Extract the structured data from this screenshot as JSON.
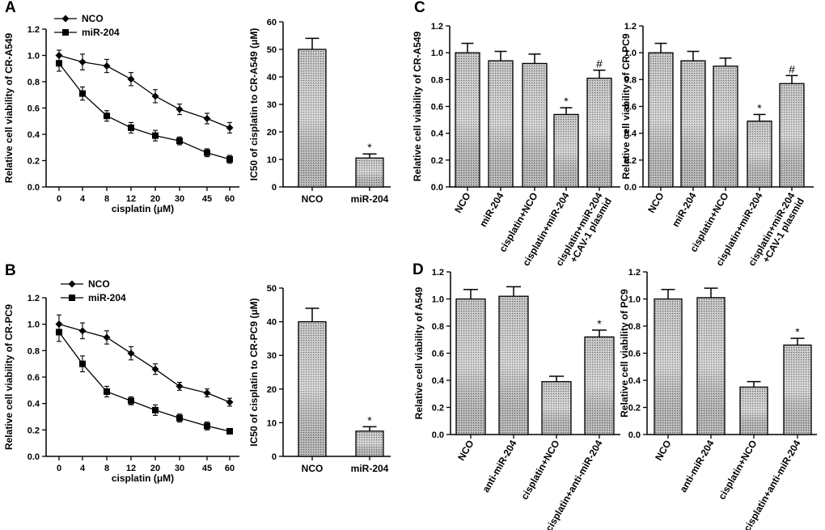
{
  "chart_data": [
    {
      "panel": "A",
      "type": "line",
      "x": [
        "0",
        "4",
        "8",
        "12",
        "20",
        "30",
        "45",
        "60"
      ],
      "series": [
        {
          "name": "NCO",
          "marker": "diamond",
          "values": [
            1.0,
            0.95,
            0.92,
            0.82,
            0.69,
            0.59,
            0.52,
            0.45
          ],
          "errors": [
            0.04,
            0.06,
            0.05,
            0.05,
            0.05,
            0.04,
            0.04,
            0.04
          ]
        },
        {
          "name": "miR-204",
          "marker": "square",
          "values": [
            0.94,
            0.71,
            0.54,
            0.45,
            0.39,
            0.35,
            0.26,
            0.21
          ],
          "errors": [
            0.06,
            0.05,
            0.04,
            0.04,
            0.04,
            0.03,
            0.03,
            0.03
          ]
        }
      ],
      "ylim": [
        0,
        1.2
      ],
      "yticks": [
        "0.0",
        "0.2",
        "0.4",
        "0.6",
        "0.8",
        "1.0",
        "1.2"
      ],
      "xlabel": "cisplatin (μM)",
      "ylabel": "Relative cell viability of CR-A549"
    },
    {
      "panel": "A2",
      "type": "bar",
      "categories": [
        "NCO",
        "miR-204"
      ],
      "values": [
        50,
        10.5
      ],
      "errors": [
        4,
        1.5
      ],
      "annotations": [
        "",
        "*"
      ],
      "ylim": [
        0,
        60
      ],
      "yticks": [
        "0",
        "10",
        "20",
        "30",
        "40",
        "50",
        "60"
      ],
      "ylabel": "IC50 of cisplatin to CR-A549 (μM)"
    },
    {
      "panel": "B",
      "type": "line",
      "x": [
        "0",
        "4",
        "8",
        "12",
        "20",
        "30",
        "45",
        "60"
      ],
      "series": [
        {
          "name": "NCO",
          "marker": "diamond",
          "values": [
            1.0,
            0.95,
            0.9,
            0.78,
            0.66,
            0.53,
            0.48,
            0.41
          ],
          "errors": [
            0.07,
            0.06,
            0.05,
            0.05,
            0.04,
            0.03,
            0.03,
            0.03
          ]
        },
        {
          "name": "miR-204",
          "marker": "square",
          "values": [
            0.94,
            0.7,
            0.49,
            0.42,
            0.35,
            0.29,
            0.23,
            0.19
          ],
          "errors": [
            0.07,
            0.06,
            0.04,
            0.03,
            0.04,
            0.03,
            0.03,
            0.02
          ]
        }
      ],
      "ylim": [
        0,
        1.2
      ],
      "yticks": [
        "0.0",
        "0.2",
        "0.4",
        "0.6",
        "0.8",
        "1.0",
        "1.2"
      ],
      "xlabel": "cisplatin (μM)",
      "ylabel": "Relative cell viability of CR-PC9"
    },
    {
      "panel": "B2",
      "type": "bar",
      "categories": [
        "NCO",
        "miR-204"
      ],
      "values": [
        40,
        7.5
      ],
      "errors": [
        4,
        1.3
      ],
      "annotations": [
        "",
        "*"
      ],
      "ylim": [
        0,
        50
      ],
      "yticks": [
        "0",
        "10",
        "20",
        "30",
        "40",
        "50"
      ],
      "ylabel": "IC50 of cisplatin to CR-PC9 (μM)"
    },
    {
      "panel": "C",
      "type": "bar",
      "categories": [
        "NCO",
        "miR-204",
        "cisplatin+NCO",
        "cisplatin+miR-204",
        "cisplatin+miR-204\n+CAV-1 plasmid"
      ],
      "values": [
        1.0,
        0.94,
        0.92,
        0.54,
        0.81
      ],
      "errors": [
        0.07,
        0.07,
        0.07,
        0.05,
        0.06
      ],
      "annotations": [
        "",
        "",
        "",
        "*",
        "#"
      ],
      "ylim": [
        0,
        1.2
      ],
      "yticks": [
        "0.0",
        "0.2",
        "0.4",
        "0.6",
        "0.8",
        "1.0",
        "1.2"
      ],
      "ylabel": "Relative cell viability of CR-A549"
    },
    {
      "panel": "C2",
      "type": "bar",
      "categories": [
        "NCO",
        "miR-204",
        "cisplatin+NCO",
        "cisplatin+miR-204",
        "cisplatin+miR-204\n+CAV-1 plasmid"
      ],
      "values": [
        1.0,
        0.94,
        0.9,
        0.49,
        0.77
      ],
      "errors": [
        0.07,
        0.07,
        0.06,
        0.05,
        0.06
      ],
      "annotations": [
        "",
        "",
        "",
        "*",
        "#"
      ],
      "ylim": [
        0,
        1.2
      ],
      "yticks": [
        "0.0",
        "0.2",
        "0.4",
        "0.6",
        "0.8",
        "1.0",
        "1.2"
      ],
      "ylabel": "Relative cell viability of CR-PC9"
    },
    {
      "panel": "D",
      "type": "bar",
      "categories": [
        "NCO",
        "anti-miR-204",
        "cisplatin+NCO",
        "cisplatin+anti-miR-204"
      ],
      "values": [
        1.0,
        1.02,
        0.39,
        0.72
      ],
      "errors": [
        0.07,
        0.07,
        0.04,
        0.05
      ],
      "annotations": [
        "",
        "",
        "",
        "*"
      ],
      "ylim": [
        0,
        1.2
      ],
      "yticks": [
        "0.0",
        "0.2",
        "0.4",
        "0.6",
        "0.8",
        "1.0",
        "1.2"
      ],
      "ylabel": "Relative cell viability of A549"
    },
    {
      "panel": "D2",
      "type": "bar",
      "categories": [
        "NCO",
        "anti-miR-204",
        "cisplatin+NCO",
        "cisplatin+anti-miR-204"
      ],
      "values": [
        1.0,
        1.01,
        0.35,
        0.66
      ],
      "errors": [
        0.07,
        0.07,
        0.04,
        0.05
      ],
      "annotations": [
        "",
        "",
        "",
        "*"
      ],
      "ylim": [
        0,
        1.2
      ],
      "yticks": [
        "0.0",
        "0.2",
        "0.4",
        "0.6",
        "0.8",
        "1.0",
        "1.2"
      ],
      "ylabel": "Relative cell viability of PC9"
    }
  ],
  "panel_labels": {
    "A": "A",
    "B": "B",
    "C": "C",
    "D": "D"
  },
  "legend": {
    "nco": "NCO",
    "mir": "miR-204"
  },
  "colors": {
    "ink": "#000000",
    "bar_fill": "#b8b8b8",
    "background": "#ffffff"
  }
}
